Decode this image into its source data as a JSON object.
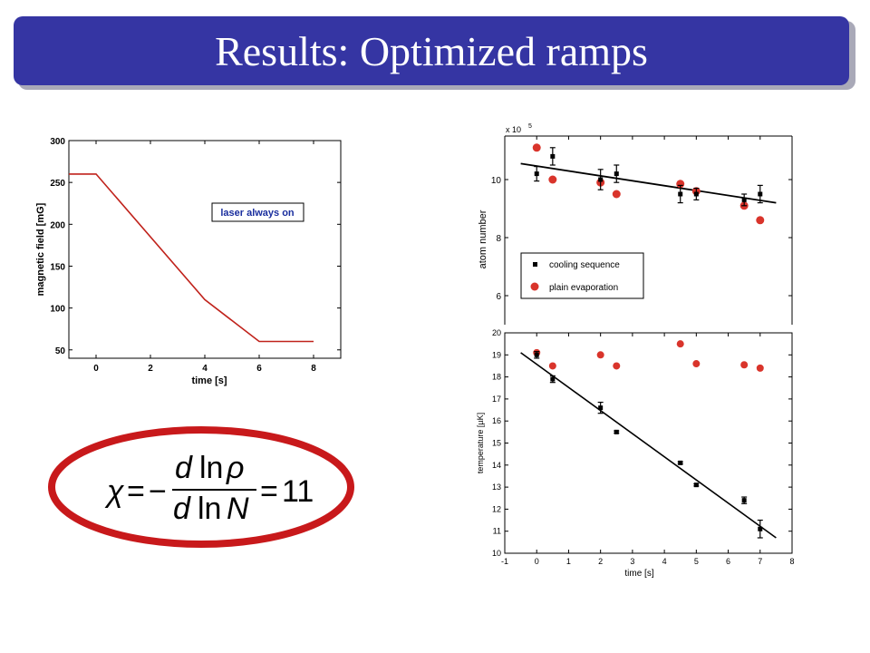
{
  "slide": {
    "title": "Results: Optimized ramps"
  },
  "colors": {
    "title_bg": "#3535a3",
    "ramp_line": "#c0221b",
    "evap_marker": "#d9342b",
    "ellipse": "#c8191b"
  },
  "formula": {
    "lhs": "χ",
    "eq": "=",
    "minus": "−",
    "num_d": "d",
    "num_ln": "ln",
    "num_var": "ρ",
    "den_d": "d",
    "den_ln": "ln",
    "den_var": "N",
    "eq2": "=",
    "rhs": "11"
  },
  "chart_data": [
    {
      "type": "line",
      "xlabel": "time [s]",
      "ylabel": "magnetic field [mG]",
      "xlim": [
        -1,
        9
      ],
      "ylim": [
        40,
        300
      ],
      "xticks": [
        0,
        2,
        4,
        6,
        8
      ],
      "yticks": [
        50,
        100,
        150,
        200,
        250,
        300
      ],
      "annotation": "laser always on",
      "series": [
        {
          "x": [
            -1,
            0,
            4,
            6,
            8
          ],
          "y": [
            260,
            260,
            110,
            60,
            60
          ]
        }
      ]
    },
    {
      "type": "scatter",
      "ylabel": "atom number",
      "yscale_label": "x 10",
      "yscale_exp": "5",
      "xlim": [
        -1,
        8
      ],
      "ylim": [
        5,
        11.5
      ],
      "yticks": [
        6,
        8,
        10
      ],
      "legend_position": "lower-left",
      "series": [
        {
          "name": "cooling sequence",
          "x": [
            0,
            0.5,
            2,
            2.5,
            4.5,
            5,
            6.5,
            7
          ],
          "y": [
            10.2,
            10.8,
            10.0,
            10.2,
            9.5,
            9.5,
            9.3,
            9.5
          ],
          "err": [
            0.25,
            0.3,
            0.35,
            0.3,
            0.3,
            0.2,
            0.2,
            0.3
          ]
        },
        {
          "name": "plain evaporation",
          "x": [
            0,
            0.5,
            2,
            2.5,
            4.5,
            5,
            6.5,
            7
          ],
          "y": [
            11.1,
            10.0,
            9.9,
            9.5,
            9.85,
            9.6,
            9.1,
            8.6
          ]
        }
      ],
      "fit": {
        "x": [
          -0.5,
          7.5
        ],
        "y": [
          10.55,
          9.2
        ]
      }
    },
    {
      "type": "scatter",
      "xlabel": "time [s]",
      "ylabel": "temperature [µK]",
      "xlim": [
        -1,
        8
      ],
      "ylim": [
        10,
        20
      ],
      "xticks": [
        -1,
        0,
        1,
        2,
        3,
        4,
        5,
        6,
        7,
        8
      ],
      "yticks": [
        10,
        11,
        12,
        13,
        14,
        15,
        16,
        17,
        18,
        19,
        20
      ],
      "series": [
        {
          "name": "cooling sequence",
          "x": [
            0,
            0.5,
            2,
            2.5,
            4.5,
            5,
            6.5,
            7
          ],
          "y": [
            19.0,
            17.9,
            16.6,
            15.5,
            14.1,
            13.1,
            12.4,
            11.1
          ],
          "err": [
            0.15,
            0.15,
            0.25,
            0.05,
            0.05,
            0.05,
            0.15,
            0.4
          ]
        },
        {
          "name": "plain evaporation",
          "x": [
            0,
            0.5,
            2,
            2.5,
            4.5,
            5,
            6.5,
            7
          ],
          "y": [
            19.1,
            18.5,
            19.0,
            18.5,
            19.5,
            18.6,
            18.55,
            18.4
          ]
        }
      ],
      "fit": {
        "x": [
          -0.5,
          7.5
        ],
        "y": [
          19.1,
          10.7
        ]
      }
    }
  ]
}
